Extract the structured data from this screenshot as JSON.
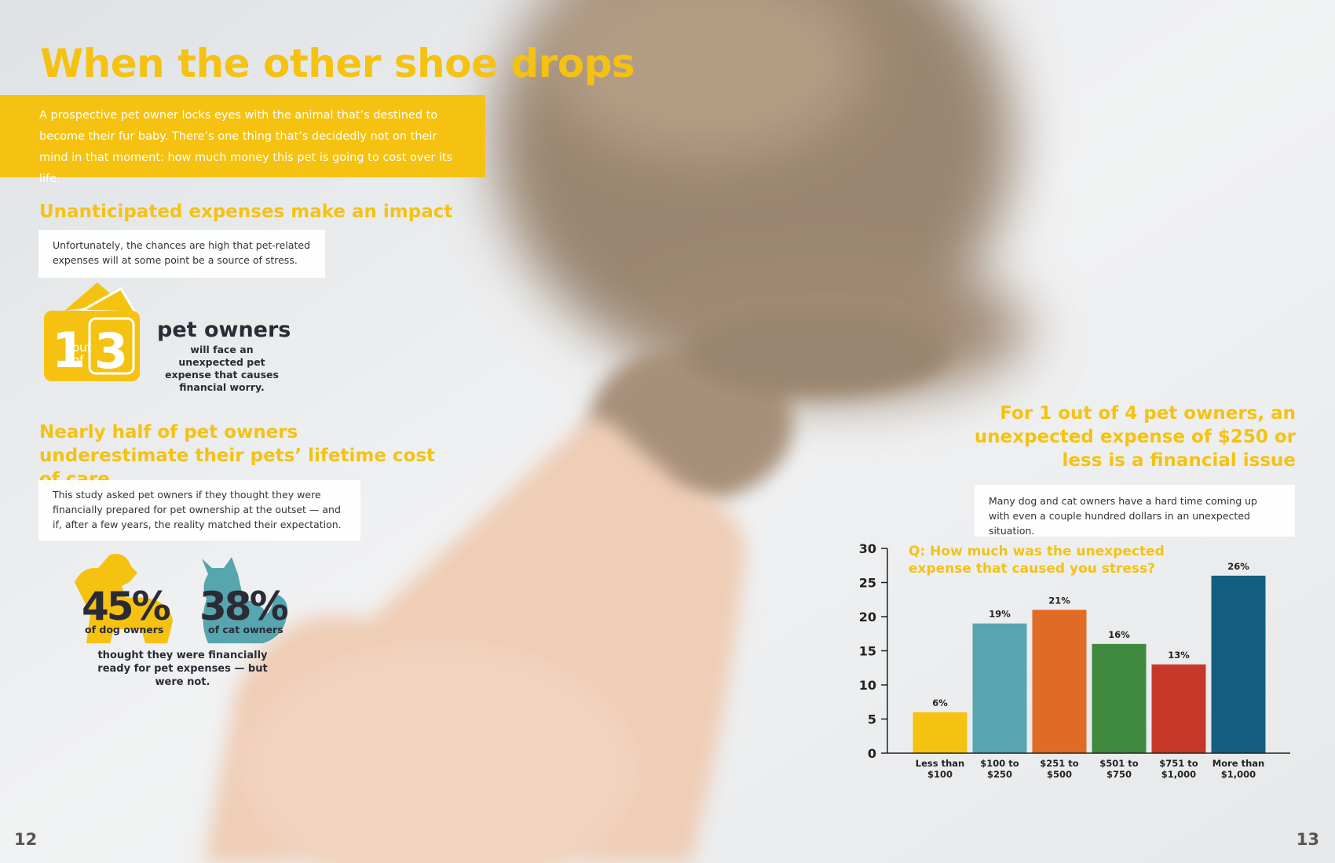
{
  "title": "When the other shoe drops",
  "intro": "A prospective pet owner locks eyes with the animal that’s destined to become their fur baby. There’s one thing that’s decidedly not on their mind in that moment: how much money this pet is going to cost over its life.",
  "section1": {
    "heading": "Unanticipated expenses make an impact",
    "body": "Unfortunately, the chances are high that pet-related expenses will at some point be a source of stress.",
    "stat": {
      "one": "1",
      "out": "out",
      "of": "of",
      "three": "3",
      "label": "pet owners",
      "text": "will face an unexpected pet expense that causes financial worry."
    }
  },
  "section2": {
    "heading": "Nearly half of pet owners underestimate their pets’ lifetime cost of care",
    "body": "This study asked pet owners if they thought they were financially prepared for pet ownership at the outset — and if, after a few years, the reality matched their expectation.",
    "dog": {
      "value": "45%",
      "label": "of dog owners"
    },
    "cat": {
      "value": "38%",
      "label": "of cat owners"
    },
    "caption": "thought they were financially ready for pet expenses — but were not."
  },
  "section3": {
    "heading": "For 1 out of 4 pet owners, an unexpected expense of $250 or less is a financial issue",
    "body": "Many dog and cat owners have a hard time coming up with even a couple hundred dollars in an unexpected situation."
  },
  "chart_data": {
    "type": "bar",
    "title": "Q: How much was the unexpected expense that caused you stress?",
    "categories": [
      "Less than $100",
      "$100 to $250",
      "$251 to $500",
      "$501 to $750",
      "$751 to $1,000",
      "More than $1,000"
    ],
    "values": [
      6,
      19,
      21,
      16,
      13,
      26
    ],
    "value_labels": [
      "6%",
      "19%",
      "21%",
      "16%",
      "13%",
      "26%"
    ],
    "colors": [
      "#f5c211",
      "#57a5ae",
      "#e06b25",
      "#3f8a3f",
      "#c8382a",
      "#135e80"
    ],
    "ylim": [
      0,
      30
    ],
    "yticks": [
      0,
      5,
      10,
      15,
      20,
      25,
      30
    ]
  },
  "page_numbers": {
    "left": "12",
    "right": "13"
  }
}
